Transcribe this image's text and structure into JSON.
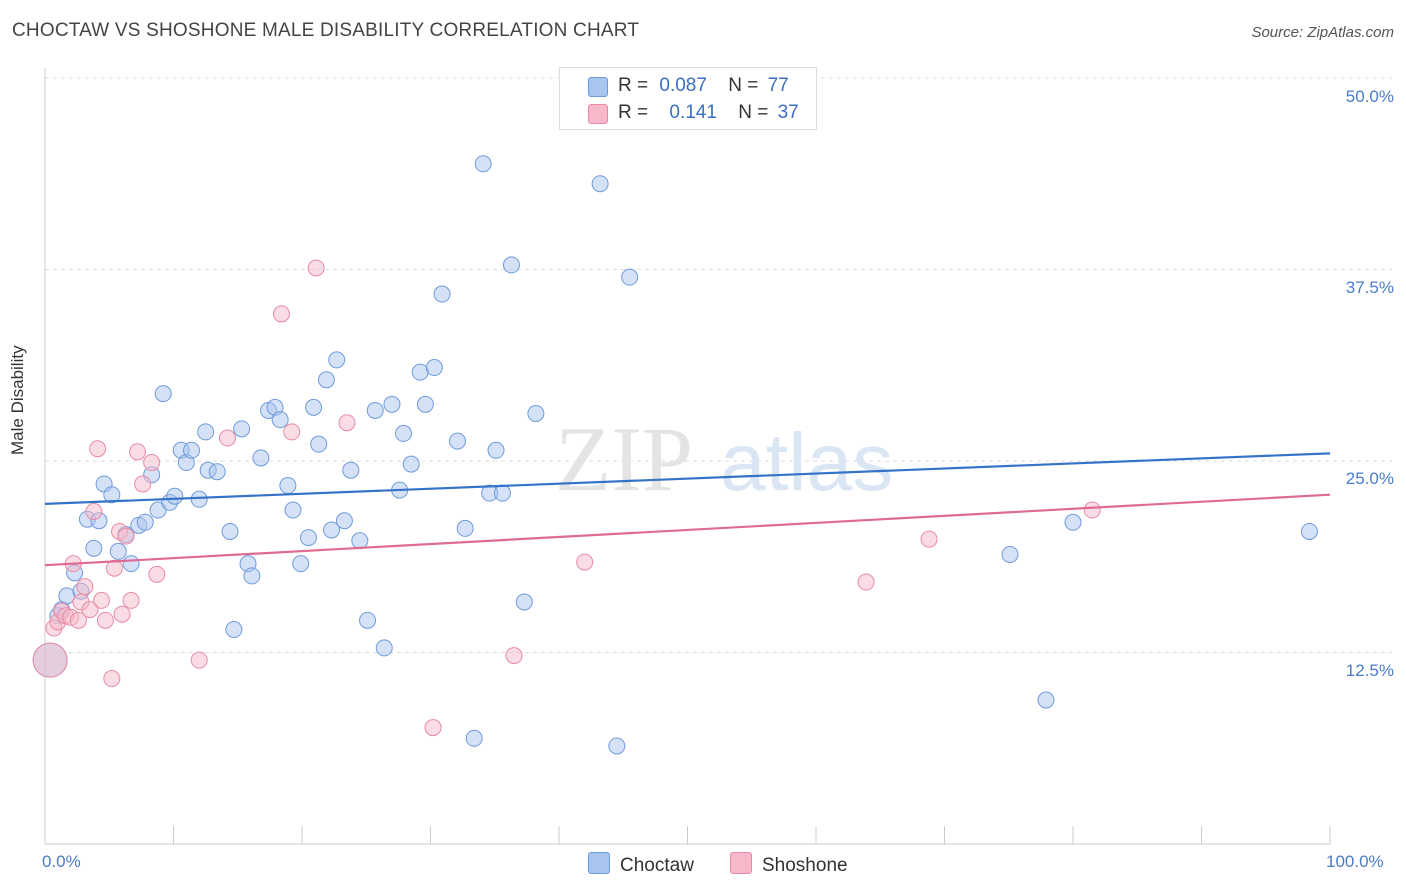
{
  "header": {
    "title": "CHOCTAW VS SHOSHONE MALE DISABILITY CORRELATION CHART",
    "source": "Source: ZipAtlas.com"
  },
  "legend": {
    "rows": [
      {
        "r_label": "R =",
        "r_value": "0.087",
        "n_label": "N =",
        "n_value": "77"
      },
      {
        "r_label": "R =",
        "r_value": "0.141",
        "n_label": "N =",
        "n_value": "37"
      }
    ],
    "bottom": [
      "Choctaw",
      "Shoshone"
    ]
  },
  "colors": {
    "choctaw_fill": "#a9c4ee",
    "choctaw_stroke": "#6f9bdc",
    "choctaw_line": "#3573c9",
    "shoshone_fill": "#f6b9ca",
    "shoshone_stroke": "#e98aa6",
    "shoshone_line": "#e06b92",
    "tick_label": "#4a7cc9"
  },
  "chart_data": {
    "type": "scatter",
    "title": "CHOCTAW VS SHOSHONE MALE DISABILITY CORRELATION CHART",
    "ylabel": "Male Disability",
    "xlabel": "",
    "xlim": [
      0,
      100
    ],
    "ylim": [
      0,
      50
    ],
    "x_ticks": [
      "0.0%",
      "100.0%"
    ],
    "y_ticks": [
      {
        "value": 50,
        "label": "50.0%"
      },
      {
        "value": 37.5,
        "label": "37.5%"
      },
      {
        "value": 25,
        "label": "25.0%"
      },
      {
        "value": 12.5,
        "label": "12.5%"
      }
    ],
    "grid": "horizontal dashed",
    "legend_position": "top-center",
    "watermark": "ZIPatlas",
    "series": [
      {
        "name": "Choctaw",
        "r": 0.087,
        "n": 77,
        "trend": {
          "x": [
            0,
            100
          ],
          "y": [
            22.2,
            25.5
          ]
        },
        "points": [
          [
            0.4,
            12.0
          ],
          [
            1.0,
            14.9
          ],
          [
            1.3,
            15.3
          ],
          [
            1.7,
            16.2
          ],
          [
            2.3,
            17.7
          ],
          [
            2.8,
            16.5
          ],
          [
            3.3,
            21.2
          ],
          [
            3.8,
            19.3
          ],
          [
            4.2,
            21.1
          ],
          [
            4.6,
            23.5
          ],
          [
            5.2,
            22.8
          ],
          [
            5.7,
            19.1
          ],
          [
            6.3,
            20.2
          ],
          [
            6.7,
            18.3
          ],
          [
            7.3,
            20.8
          ],
          [
            7.8,
            21.0
          ],
          [
            8.3,
            24.1
          ],
          [
            8.8,
            21.8
          ],
          [
            9.2,
            29.4
          ],
          [
            9.7,
            22.3
          ],
          [
            10.1,
            22.7
          ],
          [
            10.6,
            25.7
          ],
          [
            11.0,
            24.9
          ],
          [
            11.4,
            25.7
          ],
          [
            12.0,
            22.5
          ],
          [
            12.5,
            26.9
          ],
          [
            12.7,
            24.4
          ],
          [
            13.4,
            24.3
          ],
          [
            14.4,
            20.4
          ],
          [
            14.7,
            14.0
          ],
          [
            15.3,
            27.1
          ],
          [
            15.8,
            18.3
          ],
          [
            16.1,
            17.5
          ],
          [
            16.8,
            25.2
          ],
          [
            17.4,
            28.3
          ],
          [
            17.9,
            28.5
          ],
          [
            18.3,
            27.7
          ],
          [
            18.9,
            23.4
          ],
          [
            19.3,
            21.8
          ],
          [
            19.9,
            18.3
          ],
          [
            20.5,
            20.0
          ],
          [
            20.9,
            28.5
          ],
          [
            21.3,
            26.1
          ],
          [
            21.9,
            30.3
          ],
          [
            22.3,
            20.5
          ],
          [
            22.7,
            31.6
          ],
          [
            23.3,
            21.1
          ],
          [
            23.8,
            24.4
          ],
          [
            24.5,
            19.8
          ],
          [
            25.1,
            14.6
          ],
          [
            25.7,
            28.3
          ],
          [
            26.4,
            12.8
          ],
          [
            27.0,
            28.7
          ],
          [
            27.6,
            23.1
          ],
          [
            27.9,
            26.8
          ],
          [
            28.5,
            24.8
          ],
          [
            29.2,
            30.8
          ],
          [
            29.6,
            28.7
          ],
          [
            30.3,
            31.1
          ],
          [
            30.9,
            35.9
          ],
          [
            32.1,
            26.3
          ],
          [
            32.7,
            20.6
          ],
          [
            33.4,
            6.9
          ],
          [
            34.1,
            44.4
          ],
          [
            34.6,
            22.9
          ],
          [
            35.1,
            25.7
          ],
          [
            35.6,
            22.9
          ],
          [
            36.3,
            37.8
          ],
          [
            37.3,
            15.8
          ],
          [
            38.2,
            28.1
          ],
          [
            43.2,
            43.1
          ],
          [
            44.5,
            6.4
          ],
          [
            45.5,
            37.0
          ],
          [
            75.1,
            18.9
          ],
          [
            77.9,
            9.4
          ],
          [
            80.0,
            21.0
          ],
          [
            98.4,
            20.4
          ]
        ]
      },
      {
        "name": "Shoshone",
        "r": 0.141,
        "n": 37,
        "trend": {
          "x": [
            0,
            100
          ],
          "y": [
            18.2,
            22.8
          ]
        },
        "points": [
          [
            0.4,
            12.0
          ],
          [
            0.7,
            14.1
          ],
          [
            1.0,
            14.5
          ],
          [
            1.3,
            15.2
          ],
          [
            1.6,
            14.9
          ],
          [
            2.0,
            14.8
          ],
          [
            2.2,
            18.3
          ],
          [
            2.6,
            14.6
          ],
          [
            2.8,
            15.8
          ],
          [
            3.1,
            16.8
          ],
          [
            3.5,
            15.3
          ],
          [
            3.8,
            21.7
          ],
          [
            4.1,
            25.8
          ],
          [
            4.4,
            15.9
          ],
          [
            4.7,
            14.6
          ],
          [
            5.2,
            10.8
          ],
          [
            5.4,
            18.0
          ],
          [
            5.8,
            20.4
          ],
          [
            6.0,
            15.0
          ],
          [
            6.3,
            20.1
          ],
          [
            6.7,
            15.9
          ],
          [
            7.2,
            25.6
          ],
          [
            7.6,
            23.5
          ],
          [
            8.3,
            24.9
          ],
          [
            8.7,
            17.6
          ],
          [
            12.0,
            12.0
          ],
          [
            14.2,
            26.5
          ],
          [
            18.4,
            34.6
          ],
          [
            19.2,
            26.9
          ],
          [
            21.1,
            37.6
          ],
          [
            23.5,
            27.5
          ],
          [
            30.2,
            7.6
          ],
          [
            36.5,
            12.3
          ],
          [
            42.0,
            18.4
          ],
          [
            63.9,
            17.1
          ],
          [
            68.8,
            19.9
          ],
          [
            81.5,
            21.8
          ]
        ]
      }
    ]
  }
}
